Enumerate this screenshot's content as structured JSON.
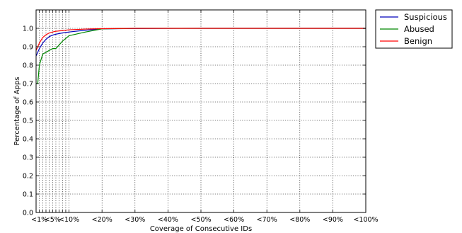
{
  "chart_data": {
    "type": "line",
    "xlabel": "Coverage of Consecutive IDs",
    "ylabel": "Percentage of Apps",
    "ylim": [
      0,
      1.1
    ],
    "xlim": [
      0,
      1
    ],
    "x_tick_labels": [
      "<1%",
      "<5%",
      "<10%",
      "<20%",
      "<30%",
      "<40%",
      "<50%",
      "<60%",
      "<70%",
      "<80%",
      "<90%",
      "<100%"
    ],
    "x_tick_values": [
      0.01,
      0.05,
      0.1,
      0.2,
      0.3,
      0.4,
      0.5,
      0.6,
      0.7,
      0.8,
      0.9,
      1.0
    ],
    "x_minor_gridlines": [
      0.01,
      0.02,
      0.03,
      0.04,
      0.05,
      0.06,
      0.07,
      0.08,
      0.09,
      0.1
    ],
    "y_ticks": [
      0.0,
      0.1,
      0.2,
      0.3,
      0.4,
      0.5,
      0.6,
      0.7,
      0.8,
      0.9,
      1.0
    ],
    "y_tick_labels": [
      "0.0",
      "0.1",
      "0.2",
      "0.3",
      "0.4",
      "0.5",
      "0.6",
      "0.7",
      "0.8",
      "0.9",
      "1.0"
    ],
    "grid": true,
    "legend_position": "outside-top-right",
    "series": [
      {
        "name": "Suspicious",
        "color": "#0000bb",
        "x": [
          0.0,
          0.01,
          0.02,
          0.03,
          0.04,
          0.05,
          0.06,
          0.08,
          0.1,
          0.15,
          0.2,
          0.3,
          0.5,
          1.0
        ],
        "y": [
          0.85,
          0.89,
          0.92,
          0.94,
          0.955,
          0.963,
          0.968,
          0.975,
          0.98,
          0.99,
          0.997,
          0.999,
          1.0,
          1.0
        ]
      },
      {
        "name": "Abused",
        "color": "#008800",
        "x": [
          0.0,
          0.005,
          0.01,
          0.02,
          0.03,
          0.04,
          0.05,
          0.06,
          0.08,
          0.1,
          0.15,
          0.2,
          0.3,
          0.5,
          1.0
        ],
        "y": [
          0.7,
          0.7,
          0.8,
          0.86,
          0.87,
          0.88,
          0.89,
          0.89,
          0.93,
          0.96,
          0.98,
          0.997,
          1.0,
          1.0,
          1.0
        ]
      },
      {
        "name": "Benign",
        "color": "#ff0000",
        "x": [
          0.0,
          0.01,
          0.02,
          0.03,
          0.04,
          0.05,
          0.06,
          0.08,
          0.1,
          0.15,
          0.2,
          0.3,
          0.5,
          1.0
        ],
        "y": [
          0.88,
          0.92,
          0.95,
          0.965,
          0.975,
          0.98,
          0.984,
          0.988,
          0.992,
          0.996,
          0.998,
          1.0,
          1.0,
          1.0
        ]
      }
    ]
  }
}
